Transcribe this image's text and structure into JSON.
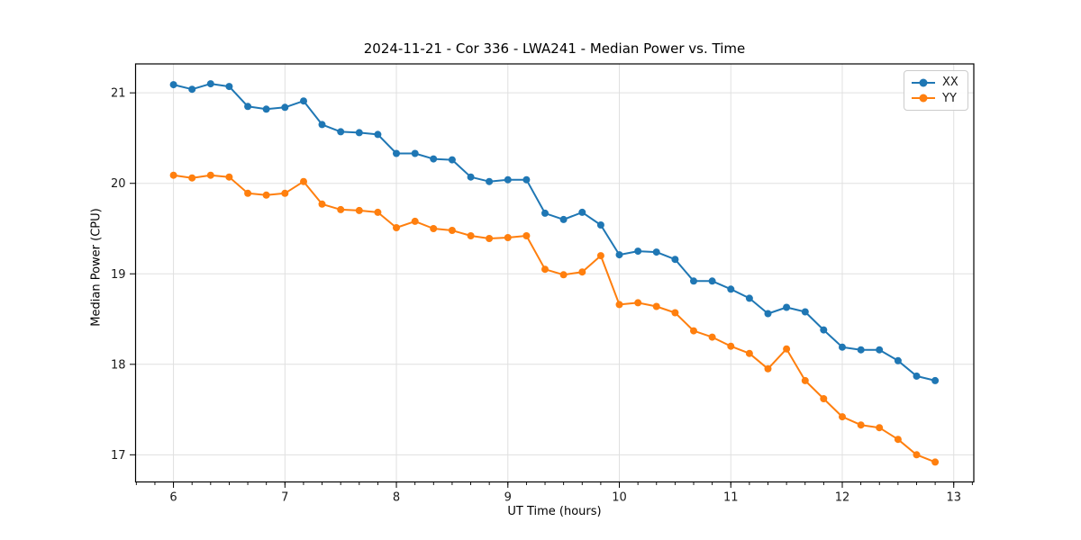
{
  "chart_data": {
    "type": "line",
    "title": "2024-11-21 - Cor 336 - LWA241 - Median Power vs. Time",
    "xlabel": "UT Time (hours)",
    "ylabel": "Median Power (CPU)",
    "xlim": [
      5.66,
      13.18
    ],
    "ylim": [
      16.7,
      21.32
    ],
    "x_major_ticks": [
      6,
      7,
      8,
      9,
      10,
      11,
      12,
      13
    ],
    "y_major_ticks": [
      17,
      18,
      19,
      20,
      21
    ],
    "x_minor_step": 0.166667,
    "grid": "major-on",
    "legend_position": "upper right",
    "grid_color": "#e0e0e0",
    "x": [
      6.0,
      6.167,
      6.333,
      6.5,
      6.667,
      6.833,
      7.0,
      7.167,
      7.333,
      7.5,
      7.667,
      7.833,
      8.0,
      8.167,
      8.333,
      8.5,
      8.667,
      8.833,
      9.0,
      9.167,
      9.333,
      9.5,
      9.667,
      9.833,
      10.0,
      10.167,
      10.333,
      10.5,
      10.667,
      10.833,
      11.0,
      11.167,
      11.333,
      11.5,
      11.667,
      11.833,
      12.0,
      12.167,
      12.333,
      12.5,
      12.667,
      12.833
    ],
    "series": [
      {
        "name": "XX",
        "color": "#1f77b4",
        "values": [
          21.09,
          21.04,
          21.1,
          21.07,
          20.85,
          20.82,
          20.84,
          20.91,
          20.65,
          20.57,
          20.56,
          20.54,
          20.33,
          20.33,
          20.27,
          20.26,
          20.07,
          20.02,
          20.04,
          20.04,
          19.67,
          19.6,
          19.68,
          19.54,
          19.21,
          19.25,
          19.24,
          19.16,
          18.92,
          18.92,
          18.83,
          18.73,
          18.56,
          18.63,
          18.58,
          18.38,
          18.19,
          18.16,
          18.16,
          18.04,
          17.87,
          17.82
        ]
      },
      {
        "name": "YY",
        "color": "#ff7f0e",
        "values": [
          20.09,
          20.06,
          20.09,
          20.07,
          19.89,
          19.87,
          19.89,
          20.02,
          19.77,
          19.71,
          19.7,
          19.68,
          19.51,
          19.58,
          19.5,
          19.48,
          19.42,
          19.39,
          19.4,
          19.42,
          19.05,
          18.99,
          19.02,
          19.2,
          18.66,
          18.68,
          18.64,
          18.57,
          18.37,
          18.3,
          18.2,
          18.12,
          17.95,
          18.17,
          17.82,
          17.62,
          17.42,
          17.33,
          17.3,
          17.17,
          17.0,
          16.92
        ]
      }
    ]
  }
}
